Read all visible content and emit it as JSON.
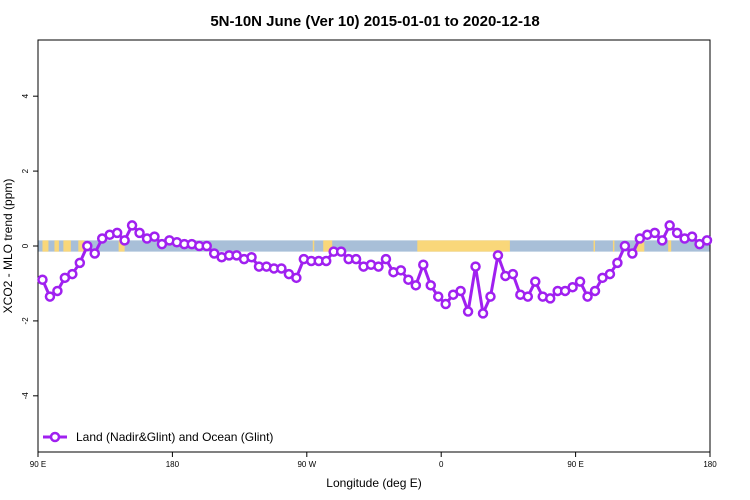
{
  "chart_data": {
    "type": "line",
    "title": "5N-10N June (Ver 10)   2015-01-01 to 2020-12-18",
    "xlabel": "Longitude (deg E)",
    "ylabel": "XCO2 - MLO trend (ppm)",
    "xlim": [
      90,
      540
    ],
    "ylim": [
      -5.5,
      5.5
    ],
    "x_ticks": [
      {
        "value": 90,
        "label": "90 E"
      },
      {
        "value": 180,
        "label": "180"
      },
      {
        "value": 270,
        "label": "90 W"
      },
      {
        "value": 360,
        "label": "0"
      },
      {
        "value": 450,
        "label": "90 E"
      },
      {
        "value": 540,
        "label": "180"
      }
    ],
    "y_ticks": [
      -4,
      -2,
      0,
      2,
      4
    ],
    "grid": false,
    "legend_position": "bottom-left",
    "band": {
      "ymin": -0.15,
      "ymax": 0.15,
      "ocean_color": "#a8bfd8",
      "land_color": "#f9d77a"
    },
    "land_segments": [
      [
        93,
        97
      ],
      [
        101,
        104
      ],
      [
        107,
        112
      ],
      [
        117,
        121
      ],
      [
        144,
        148
      ],
      [
        274,
        275
      ],
      [
        281,
        287
      ],
      [
        344,
        406
      ],
      [
        462,
        463
      ],
      [
        475,
        476
      ],
      [
        491,
        496
      ],
      [
        512,
        514
      ]
    ],
    "series": [
      {
        "name": "Land (Nadir&Glint) and Ocean (Glint)",
        "color": "#a020f0",
        "x": [
          93,
          98,
          103,
          108,
          113,
          118,
          123,
          128,
          133,
          138,
          143,
          148,
          153,
          158,
          163,
          168,
          173,
          178,
          183,
          188,
          193,
          198,
          203,
          208,
          213,
          218,
          223,
          228,
          233,
          238,
          243,
          248,
          253,
          258,
          263,
          268,
          273,
          278,
          283,
          288,
          293,
          298,
          303,
          308,
          313,
          318,
          323,
          328,
          333,
          338,
          343,
          348,
          353,
          358,
          363,
          368,
          373,
          378,
          383,
          388,
          393,
          398,
          403,
          408,
          413,
          418,
          423,
          428,
          433,
          438,
          443,
          448,
          453,
          458,
          463,
          468,
          473,
          478,
          483,
          488,
          493,
          498,
          503,
          508,
          513,
          518,
          523,
          528,
          533,
          538
        ],
        "values": [
          -0.9,
          -1.35,
          -1.2,
          -0.85,
          -0.75,
          -0.45,
          0.0,
          -0.2,
          0.2,
          0.3,
          0.35,
          0.15,
          0.55,
          0.35,
          0.2,
          0.25,
          0.05,
          0.15,
          0.1,
          0.05,
          0.05,
          0.0,
          0.0,
          -0.2,
          -0.3,
          -0.25,
          -0.25,
          -0.35,
          -0.3,
          -0.55,
          -0.55,
          -0.6,
          -0.6,
          -0.75,
          -0.85,
          -0.35,
          -0.4,
          -0.4,
          -0.4,
          -0.15,
          -0.15,
          -0.35,
          -0.35,
          -0.55,
          -0.5,
          -0.55,
          -0.35,
          -0.7,
          -0.65,
          -0.9,
          -1.05,
          -0.5,
          -1.05,
          -1.35,
          -1.55,
          -1.3,
          -1.2,
          -1.75,
          -0.55,
          -1.8,
          -1.35,
          -0.25,
          -0.8,
          -0.75,
          -1.3,
          -1.35,
          -0.95,
          -1.35,
          -1.4,
          -1.2,
          -1.2,
          -1.1,
          -0.95,
          -1.35,
          -1.2,
          -0.85,
          -0.75,
          -0.45,
          0.0,
          -0.2,
          0.2,
          0.3,
          0.35,
          0.15,
          0.55,
          0.35,
          0.2,
          0.25,
          0.05,
          0.15
        ]
      }
    ]
  }
}
